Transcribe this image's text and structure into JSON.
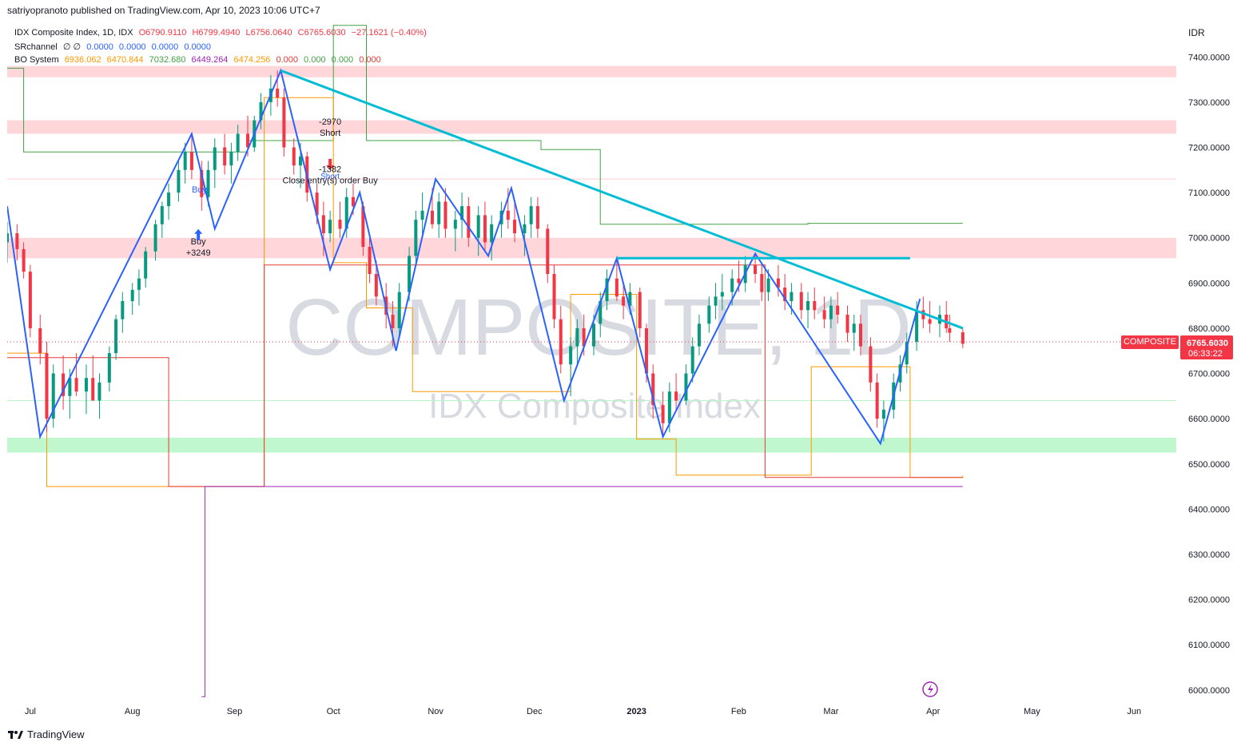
{
  "header": {
    "publisher_line": "satriyopranoto published on TradingView.com, Apr 10, 2023 10:06 UTC+7"
  },
  "legend": {
    "symbol_line": "IDX Composite Index, 1D, IDX",
    "ohlc": {
      "o": "O6790.9110",
      "h": "H6799.4940",
      "l": "L6756.0640",
      "c": "C6765.6030",
      "chg": "−27.1621 (−0.40%)"
    },
    "srchannel_label": "SRchannel",
    "srchannel_params": "∅ ∅",
    "srchannel_vals": [
      "0.0000",
      "0.0000",
      "0.0000",
      "0.0000"
    ],
    "bo_label": "BO System",
    "bo_vals": [
      "6936.062",
      "6470.844",
      "7032.680",
      "6449.264",
      "6474.256",
      "0.000",
      "0.000",
      "0.000",
      "0.000"
    ]
  },
  "watermark": {
    "symbol": "COMPOSITE, 1D",
    "name": "IDX Composite Index"
  },
  "price_axis": {
    "currency": "IDR",
    "ticks": [
      "7400.0000",
      "7300.0000",
      "7200.0000",
      "7100.0000",
      "7000.0000",
      "6900.0000",
      "6800.0000",
      "6700.0000",
      "6600.0000",
      "6500.0000",
      "6400.0000",
      "6300.0000",
      "6200.0000",
      "6100.0000",
      "6000.0000"
    ],
    "last_tag": {
      "name": "COMPOSITE",
      "price": "6765.6030",
      "countdown": "06:33:22"
    }
  },
  "time_axis": {
    "labels": [
      "Jul",
      "Aug",
      "Sep",
      "Oct",
      "Nov",
      "Dec",
      "2023",
      "Feb",
      "Mar",
      "Apr",
      "May",
      "Jun"
    ]
  },
  "annotations": {
    "buy_label": "Buy",
    "buy_profit": "Buy\n+3249",
    "short_profit": "-2970\nShort",
    "short_label": "Short",
    "close_text": "-1382\nClose entry(s) order Buy"
  },
  "footer": {
    "brand": "TradingView"
  },
  "colors": {
    "up": "#089981",
    "down": "#f23645",
    "zigzag": "#2962ff",
    "trendline": "#00bcd4",
    "resistance_zone": "#ffcdd2",
    "support_zone": "#b9f6ca",
    "orange": "#ff9800",
    "green_line": "#43a047",
    "red_line": "#e53935",
    "purple": "#9c27b0",
    "price_tag": "#f23645"
  },
  "chart_data": {
    "type": "candlestick",
    "title": "",
    "x_range": [
      "2022-06-24",
      "2023-06-15"
    ],
    "ylim": [
      5975,
      7480
    ],
    "y_scale": "linear",
    "grid": false,
    "last_close": 6765.603,
    "zones": {
      "resistance": [
        [
          7355,
          7380
        ],
        [
          7230,
          7260
        ],
        [
          6955,
          7000
        ]
      ],
      "support": [
        [
          6525,
          6558
        ]
      ]
    },
    "trendline": [
      [
        "2022-09-15",
        7370
      ],
      [
        "2023-04-10",
        6800
      ]
    ],
    "horizontal_neckline": [
      [
        "2022-12-26",
        6955
      ],
      [
        "2023-03-25",
        6955
      ]
    ],
    "zigzag": [
      [
        "2022-06-24",
        7070
      ],
      [
        "2022-07-04",
        6560
      ],
      [
        "2022-08-19",
        7230
      ],
      [
        "2022-08-26",
        7020
      ],
      [
        "2022-09-15",
        7370
      ],
      [
        "2022-09-30",
        6930
      ],
      [
        "2022-10-09",
        7100
      ],
      [
        "2022-10-20",
        6750
      ],
      [
        "2022-11-01",
        7130
      ],
      [
        "2022-11-17",
        6960
      ],
      [
        "2022-11-24",
        7110
      ],
      [
        "2022-12-10",
        6640
      ],
      [
        "2022-12-26",
        6955
      ],
      [
        "2023-01-09",
        6560
      ],
      [
        "2023-02-06",
        6965
      ],
      [
        "2023-03-16",
        6545
      ],
      [
        "2023-03-28",
        6865
      ]
    ],
    "candles": [
      [
        "2022-06-24",
        6990,
        7035,
        6945,
        7010
      ],
      [
        "2022-06-27",
        7010,
        7030,
        6950,
        6975
      ],
      [
        "2022-06-29",
        6975,
        6990,
        6910,
        6925
      ],
      [
        "2022-07-01",
        6925,
        6940,
        6780,
        6800
      ],
      [
        "2022-07-04",
        6800,
        6830,
        6720,
        6745
      ],
      [
        "2022-07-06",
        6745,
        6770,
        6570,
        6600
      ],
      [
        "2022-07-08",
        6600,
        6720,
        6580,
        6700
      ],
      [
        "2022-07-11",
        6700,
        6740,
        6620,
        6650
      ],
      [
        "2022-07-13",
        6650,
        6710,
        6600,
        6690
      ],
      [
        "2022-07-15",
        6690,
        6745,
        6650,
        6660
      ],
      [
        "2022-07-18",
        6660,
        6720,
        6610,
        6690
      ],
      [
        "2022-07-20",
        6690,
        6740,
        6640,
        6640
      ],
      [
        "2022-07-22",
        6640,
        6700,
        6600,
        6680
      ],
      [
        "2022-07-25",
        6680,
        6760,
        6660,
        6745
      ],
      [
        "2022-07-27",
        6745,
        6830,
        6730,
        6820
      ],
      [
        "2022-07-29",
        6820,
        6880,
        6790,
        6860
      ],
      [
        "2022-08-01",
        6860,
        6900,
        6830,
        6885
      ],
      [
        "2022-08-03",
        6885,
        6930,
        6850,
        6910
      ],
      [
        "2022-08-05",
        6910,
        6980,
        6890,
        6970
      ],
      [
        "2022-08-08",
        6970,
        7040,
        6950,
        7030
      ],
      [
        "2022-08-10",
        7030,
        7080,
        7000,
        7070
      ],
      [
        "2022-08-12",
        7070,
        7120,
        7040,
        7100
      ],
      [
        "2022-08-15",
        7100,
        7170,
        7080,
        7150
      ],
      [
        "2022-08-17",
        7150,
        7210,
        7120,
        7190
      ],
      [
        "2022-08-19",
        7190,
        7230,
        7130,
        7150
      ],
      [
        "2022-08-22",
        7150,
        7170,
        7060,
        7090
      ],
      [
        "2022-08-24",
        7090,
        7170,
        7070,
        7150
      ],
      [
        "2022-08-26",
        7150,
        7220,
        7110,
        7200
      ],
      [
        "2022-08-29",
        7200,
        7230,
        7140,
        7160
      ],
      [
        "2022-08-31",
        7160,
        7210,
        7120,
        7190
      ],
      [
        "2022-09-02",
        7190,
        7250,
        7170,
        7230
      ],
      [
        "2022-09-05",
        7230,
        7270,
        7180,
        7200
      ],
      [
        "2022-09-07",
        7200,
        7270,
        7190,
        7260
      ],
      [
        "2022-09-09",
        7260,
        7320,
        7240,
        7300
      ],
      [
        "2022-09-12",
        7300,
        7360,
        7270,
        7330
      ],
      [
        "2022-09-14",
        7330,
        7370,
        7290,
        7310
      ],
      [
        "2022-09-16",
        7310,
        7330,
        7180,
        7200
      ],
      [
        "2022-09-19",
        7200,
        7220,
        7140,
        7160
      ],
      [
        "2022-09-21",
        7160,
        7210,
        7110,
        7180
      ],
      [
        "2022-09-23",
        7180,
        7190,
        7080,
        7100
      ],
      [
        "2022-09-26",
        7100,
        7120,
        7030,
        7050
      ],
      [
        "2022-09-28",
        7050,
        7080,
        6960,
        7010
      ],
      [
        "2022-09-30",
        7010,
        7060,
        6990,
        7040
      ],
      [
        "2022-10-03",
        7040,
        7080,
        7000,
        7020
      ],
      [
        "2022-10-05",
        7020,
        7110,
        7000,
        7090
      ],
      [
        "2022-10-07",
        7090,
        7120,
        7050,
        7070
      ],
      [
        "2022-10-10",
        7070,
        7080,
        6960,
        6980
      ],
      [
        "2022-10-12",
        6980,
        7000,
        6900,
        6920
      ],
      [
        "2022-10-14",
        6920,
        6950,
        6850,
        6870
      ],
      [
        "2022-10-17",
        6870,
        6900,
        6800,
        6830
      ],
      [
        "2022-10-19",
        6830,
        6860,
        6760,
        6800
      ],
      [
        "2022-10-21",
        6800,
        6900,
        6780,
        6880
      ],
      [
        "2022-10-24",
        6880,
        6980,
        6860,
        6960
      ],
      [
        "2022-10-26",
        6960,
        7060,
        6940,
        7040
      ],
      [
        "2022-10-28",
        7040,
        7100,
        7000,
        7060
      ],
      [
        "2022-10-31",
        7060,
        7110,
        7020,
        7030
      ],
      [
        "2022-11-02",
        7030,
        7100,
        7000,
        7080
      ],
      [
        "2022-11-04",
        7080,
        7110,
        7000,
        7020
      ],
      [
        "2022-11-07",
        7020,
        7060,
        6970,
        7040
      ],
      [
        "2022-11-09",
        7040,
        7100,
        7000,
        7070
      ],
      [
        "2022-11-11",
        7070,
        7090,
        6980,
        7000
      ],
      [
        "2022-11-14",
        7000,
        7070,
        6960,
        7050
      ],
      [
        "2022-11-16",
        7050,
        7080,
        6970,
        6990
      ],
      [
        "2022-11-18",
        6990,
        7050,
        6950,
        7030
      ],
      [
        "2022-11-21",
        7030,
        7080,
        7000,
        7060
      ],
      [
        "2022-11-23",
        7060,
        7110,
        7020,
        7040
      ],
      [
        "2022-11-25",
        7040,
        7080,
        6990,
        7010
      ],
      [
        "2022-11-28",
        7010,
        7050,
        6960,
        7030
      ],
      [
        "2022-11-30",
        7030,
        7090,
        7000,
        7070
      ],
      [
        "2022-12-02",
        7070,
        7090,
        7000,
        7020
      ],
      [
        "2022-12-05",
        7020,
        7030,
        6900,
        6920
      ],
      [
        "2022-12-07",
        6920,
        6940,
        6800,
        6820
      ],
      [
        "2022-12-09",
        6820,
        6850,
        6700,
        6720
      ],
      [
        "2022-12-12",
        6720,
        6780,
        6650,
        6760
      ],
      [
        "2022-12-14",
        6760,
        6820,
        6720,
        6800
      ],
      [
        "2022-12-16",
        6800,
        6830,
        6740,
        6760
      ],
      [
        "2022-12-19",
        6760,
        6830,
        6740,
        6810
      ],
      [
        "2022-12-21",
        6810,
        6880,
        6780,
        6860
      ],
      [
        "2022-12-23",
        6860,
        6930,
        6840,
        6910
      ],
      [
        "2022-12-26",
        6910,
        6950,
        6860,
        6870
      ],
      [
        "2022-12-28",
        6870,
        6900,
        6820,
        6850
      ],
      [
        "2022-12-30",
        6850,
        6900,
        6830,
        6880
      ],
      [
        "2023-01-02",
        6880,
        6890,
        6780,
        6800
      ],
      [
        "2023-01-04",
        6800,
        6810,
        6680,
        6700
      ],
      [
        "2023-01-06",
        6700,
        6720,
        6600,
        6630
      ],
      [
        "2023-01-09",
        6630,
        6660,
        6560,
        6590
      ],
      [
        "2023-01-11",
        6590,
        6680,
        6570,
        6660
      ],
      [
        "2023-01-13",
        6660,
        6700,
        6620,
        6640
      ],
      [
        "2023-01-16",
        6640,
        6720,
        6630,
        6700
      ],
      [
        "2023-01-18",
        6700,
        6780,
        6680,
        6760
      ],
      [
        "2023-01-20",
        6760,
        6830,
        6740,
        6810
      ],
      [
        "2023-01-23",
        6810,
        6870,
        6790,
        6850
      ],
      [
        "2023-01-25",
        6850,
        6900,
        6820,
        6870
      ],
      [
        "2023-01-27",
        6870,
        6920,
        6840,
        6880
      ],
      [
        "2023-01-30",
        6880,
        6930,
        6850,
        6910
      ],
      [
        "2023-02-01",
        6910,
        6950,
        6880,
        6900
      ],
      [
        "2023-02-03",
        6900,
        6960,
        6880,
        6940
      ],
      [
        "2023-02-06",
        6940,
        6965,
        6900,
        6920
      ],
      [
        "2023-02-08",
        6920,
        6940,
        6860,
        6880
      ],
      [
        "2023-02-10",
        6880,
        6930,
        6860,
        6910
      ],
      [
        "2023-02-13",
        6910,
        6940,
        6870,
        6890
      ],
      [
        "2023-02-15",
        6890,
        6920,
        6840,
        6860
      ],
      [
        "2023-02-17",
        6860,
        6900,
        6830,
        6880
      ],
      [
        "2023-02-20",
        6880,
        6900,
        6820,
        6840
      ],
      [
        "2023-02-22",
        6840,
        6880,
        6800,
        6860
      ],
      [
        "2023-02-24",
        6860,
        6890,
        6820,
        6840
      ],
      [
        "2023-02-27",
        6840,
        6870,
        6800,
        6820
      ],
      [
        "2023-03-01",
        6820,
        6870,
        6800,
        6850
      ],
      [
        "2023-03-03",
        6850,
        6880,
        6810,
        6830
      ],
      [
        "2023-03-06",
        6830,
        6850,
        6770,
        6790
      ],
      [
        "2023-03-08",
        6790,
        6830,
        6750,
        6810
      ],
      [
        "2023-03-10",
        6810,
        6830,
        6740,
        6760
      ],
      [
        "2023-03-13",
        6760,
        6780,
        6660,
        6680
      ],
      [
        "2023-03-15",
        6680,
        6700,
        6580,
        6600
      ],
      [
        "2023-03-17",
        6600,
        6640,
        6550,
        6620
      ],
      [
        "2023-03-20",
        6620,
        6700,
        6600,
        6680
      ],
      [
        "2023-03-22",
        6680,
        6740,
        6660,
        6720
      ],
      [
        "2023-03-24",
        6720,
        6790,
        6700,
        6770
      ],
      [
        "2023-03-27",
        6770,
        6860,
        6750,
        6840
      ],
      [
        "2023-03-29",
        6840,
        6870,
        6800,
        6820
      ],
      [
        "2023-03-31",
        6820,
        6860,
        6790,
        6810
      ],
      [
        "2023-04-03",
        6810,
        6850,
        6780,
        6830
      ],
      [
        "2023-04-05",
        6830,
        6860,
        6790,
        6800
      ],
      [
        "2023-04-06",
        6800,
        6830,
        6770,
        6790
      ],
      [
        "2023-04-10",
        6790.911,
        6799.494,
        6756.064,
        6765.603
      ]
    ]
  }
}
